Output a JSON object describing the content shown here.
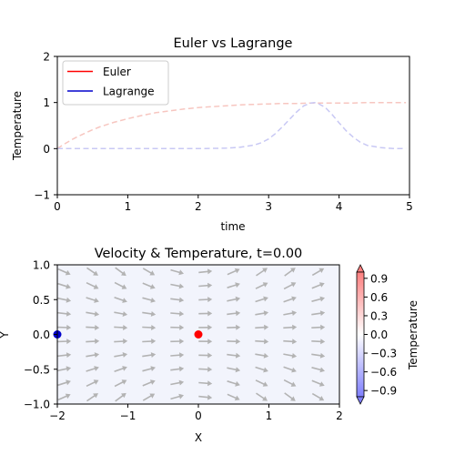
{
  "chart_data": [
    {
      "type": "line",
      "title": "Euler vs Lagrange",
      "xlabel": "time",
      "ylabel": "Temperature",
      "xlim": [
        0,
        5
      ],
      "ylim": [
        -1,
        2
      ],
      "xticks": [
        0,
        1,
        2,
        3,
        4,
        5
      ],
      "yticks": [
        -1,
        0,
        1,
        2
      ],
      "grid": false,
      "legend_position": "top-left",
      "series": [
        {
          "name": "Euler",
          "color": "#ff0000",
          "trace_color": "#f7c6c0",
          "x": [
            0,
            0.1,
            0.2,
            0.3,
            0.4,
            0.5,
            0.6,
            0.8,
            1.0,
            1.2,
            1.4,
            1.6,
            1.8,
            2.0,
            2.2,
            2.4,
            2.6,
            2.8,
            3.0,
            3.2,
            3.4,
            3.6,
            3.8,
            4.0,
            4.2,
            4.4,
            4.6,
            4.8,
            4.95
          ],
          "values": [
            0.0,
            0.1,
            0.19,
            0.27,
            0.34,
            0.41,
            0.47,
            0.57,
            0.65,
            0.72,
            0.78,
            0.82,
            0.86,
            0.89,
            0.91,
            0.93,
            0.95,
            0.96,
            0.97,
            0.98,
            0.98,
            0.99,
            0.99,
            0.99,
            0.99,
            1.0,
            1.0,
            1.0,
            1.0
          ]
        },
        {
          "name": "Lagrange",
          "color": "#0000cc",
          "trace_color": "#c8c8f4",
          "x": [
            0,
            0.5,
            1.0,
            1.5,
            2.0,
            2.4,
            2.6,
            2.8,
            2.9,
            3.0,
            3.1,
            3.2,
            3.3,
            3.4,
            3.5,
            3.6,
            3.65,
            3.7,
            3.8,
            3.9,
            4.0,
            4.1,
            4.2,
            4.3,
            4.4,
            4.6,
            4.8,
            4.95
          ],
          "values": [
            0,
            0,
            0,
            0,
            0,
            0.01,
            0.03,
            0.08,
            0.13,
            0.21,
            0.33,
            0.48,
            0.64,
            0.8,
            0.93,
            0.99,
            1.0,
            0.98,
            0.9,
            0.74,
            0.56,
            0.39,
            0.25,
            0.14,
            0.07,
            0.02,
            0.0,
            0.0
          ]
        }
      ]
    },
    {
      "type": "quiver",
      "title": "Velocity & Temperature, t=0.00",
      "xlabel": "X",
      "ylabel": "Y",
      "xlim": [
        -2,
        2
      ],
      "ylim": [
        -1,
        1
      ],
      "xticks": [
        -2,
        -1,
        0,
        1,
        2
      ],
      "yticks": [
        -1.0,
        -0.5,
        0.0,
        0.5,
        1.0
      ],
      "arrow_color": "#b3b3b3",
      "field_color": "#f2f4fc",
      "grid_x": [
        -1.9,
        -1.5,
        -1.1,
        -0.7,
        -0.3,
        0.1,
        0.5,
        0.9,
        1.3,
        1.7
      ],
      "grid_y": [
        0.9,
        0.7,
        0.5,
        0.3,
        0.1,
        -0.1,
        -0.3,
        -0.5,
        -0.7,
        -0.9
      ],
      "points": [
        {
          "name": "Euler",
          "x": 0.0,
          "y": 0.0,
          "color": "#ff0000"
        },
        {
          "name": "Lagrange",
          "x": -2.0,
          "y": 0.0,
          "color": "#0000cc"
        }
      ],
      "colorbar": {
        "label": "Temperature",
        "range": [
          -1.0,
          1.0
        ],
        "ticks": [
          "0.9",
          "0.6",
          "0.3",
          "0.0",
          "−0.3",
          "−0.6",
          "−0.9"
        ],
        "tick_values": [
          0.9,
          0.6,
          0.3,
          0.0,
          -0.3,
          -0.6,
          -0.9
        ],
        "colors": [
          "#7f7ffe",
          "#ffffff",
          "#fe7f7f"
        ]
      }
    }
  ]
}
